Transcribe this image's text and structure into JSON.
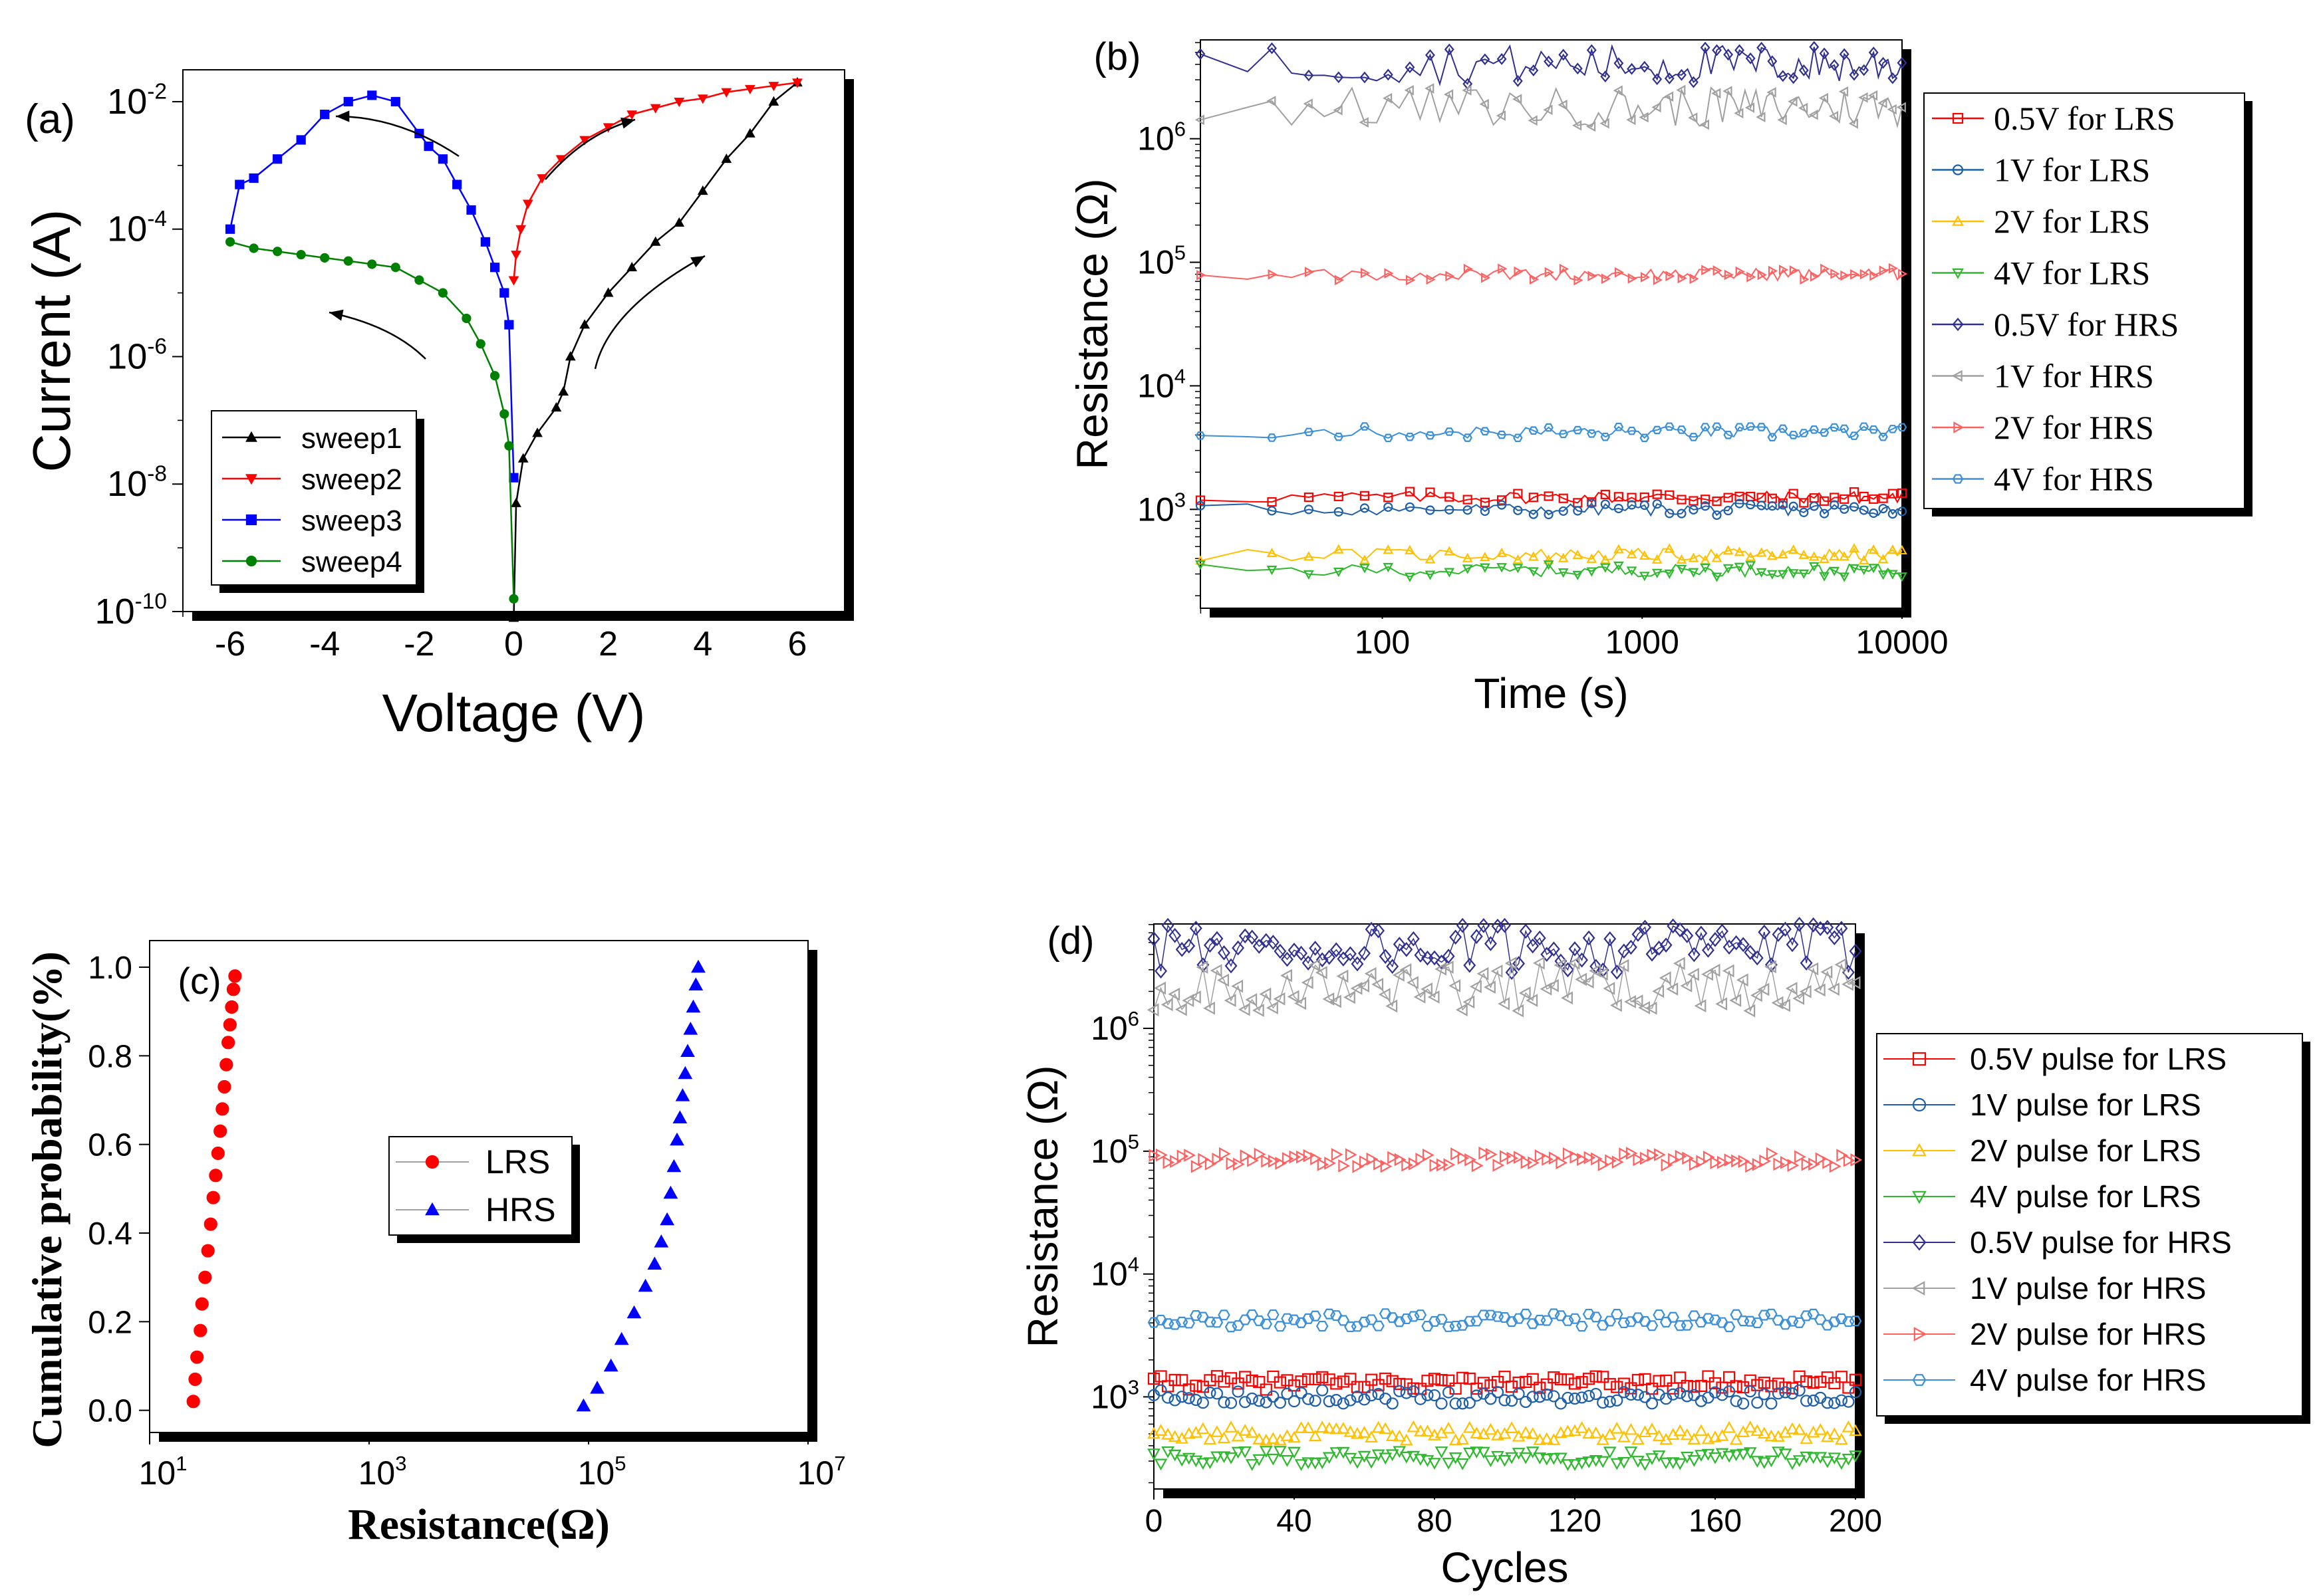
{
  "panels": [
    {
      "id": "a",
      "label": "(a)",
      "chart_data": {
        "type": "line",
        "xlabel": "Voltage (V)",
        "ylabel": "Current (A)",
        "xlim": [
          -7,
          7
        ],
        "ylim_log10": [
          -10,
          -1.5
        ],
        "xticks": [
          -6,
          -4,
          -2,
          0,
          2,
          4,
          6
        ],
        "yticks_exp": [
          -10,
          -8,
          -6,
          -4,
          -2
        ],
        "legend_position": "bottom-left",
        "series": [
          {
            "name": "sweep1",
            "color": "#000000",
            "marker": "triangle",
            "x": [
              0,
              0.05,
              0.2,
              0.5,
              0.9,
              1.05,
              1.2,
              1.5,
              2.0,
              2.5,
              3.0,
              3.5,
              4.0,
              4.5,
              5.0,
              5.5,
              6.0
            ],
            "log10y": [
              -10.1,
              -8.3,
              -7.6,
              -7.2,
              -6.8,
              -6.55,
              -6.0,
              -5.5,
              -5.0,
              -4.6,
              -4.2,
              -3.9,
              -3.4,
              -2.9,
              -2.5,
              -2.0,
              -1.7
            ]
          },
          {
            "name": "sweep2",
            "color": "#ff0000",
            "marker": "inverted-triangle",
            "x": [
              0,
              0.05,
              0.15,
              0.3,
              0.6,
              1.0,
              1.5,
              2.0,
              2.5,
              3.0,
              3.5,
              4.0,
              4.5,
              5.0,
              5.5,
              6.0
            ],
            "log10y": [
              -4.8,
              -4.4,
              -4.0,
              -3.6,
              -3.2,
              -2.9,
              -2.6,
              -2.4,
              -2.2,
              -2.1,
              -2.0,
              -1.95,
              -1.85,
              -1.8,
              -1.75,
              -1.7
            ]
          },
          {
            "name": "sweep3",
            "color": "#0000ff",
            "marker": "square",
            "x": [
              -6.0,
              -5.8,
              -5.5,
              -5.0,
              -4.5,
              -4.0,
              -3.5,
              -3.0,
              -2.5,
              -2.0,
              -1.8,
              -1.5,
              -1.2,
              -0.9,
              -0.6,
              -0.4,
              -0.2,
              -0.1,
              0
            ],
            "log10y": [
              -4.0,
              -3.3,
              -3.2,
              -2.9,
              -2.6,
              -2.2,
              -2.0,
              -1.9,
              -2.0,
              -2.5,
              -2.7,
              -2.9,
              -3.3,
              -3.7,
              -4.2,
              -4.6,
              -5.0,
              -5.5,
              -7.9
            ]
          },
          {
            "name": "sweep4",
            "color": "#008000",
            "marker": "circle",
            "x": [
              -6.0,
              -5.5,
              -5.0,
              -4.5,
              -4.0,
              -3.5,
              -3.0,
              -2.5,
              -2.0,
              -1.5,
              -1.0,
              -0.7,
              -0.4,
              -0.2,
              -0.1,
              0
            ],
            "log10y": [
              -4.2,
              -4.3,
              -4.35,
              -4.4,
              -4.45,
              -4.5,
              -4.55,
              -4.6,
              -4.8,
              -5.0,
              -5.4,
              -5.8,
              -6.3,
              -6.9,
              -7.4,
              -9.8
            ]
          }
        ]
      }
    },
    {
      "id": "b",
      "label": "(b)",
      "chart_data": {
        "type": "line",
        "xlabel": "Time (s)",
        "ylabel": "Resistance (Ω)",
        "xscale": "log",
        "xlim_log10": [
          1.3,
          4.0
        ],
        "ylim_log10": [
          2.2,
          6.8
        ],
        "xtick_labels": [
          "100",
          "1000",
          "10000"
        ],
        "xticks": [
          100,
          1000,
          10000
        ],
        "yticks_exp": [
          3,
          4,
          5,
          6
        ],
        "legend_position": "right",
        "series": [
          {
            "name": "0.5V for LRS",
            "color": "#ff0000",
            "marker": "square",
            "level": 1250
          },
          {
            "name": "1V  for LRS",
            "color": "#1f5fa8",
            "marker": "circle",
            "level": 1000
          },
          {
            "name": "2V for LRS",
            "color": "#ffc000",
            "marker": "triangle",
            "level": 430
          },
          {
            "name": "4V for LRS",
            "color": "#2eb82e",
            "marker": "inverted-triangle",
            "level": 320
          },
          {
            "name": "0.5V for HRS",
            "color": "#303090",
            "marker": "diamond",
            "level": 4000000
          },
          {
            "name": "1V for HRS",
            "color": "#a0a0a0",
            "marker": "left-triangle",
            "level": 1800000
          },
          {
            "name": "2V for HRS",
            "color": "#ff6060",
            "marker": "right-triangle",
            "level": 80000
          },
          {
            "name": "4V for HRS",
            "color": "#3a8fd8",
            "marker": "hexagon",
            "level": 4200
          }
        ]
      }
    },
    {
      "id": "c",
      "label": "(c)",
      "chart_data": {
        "type": "scatter",
        "xlabel": "Resistance(Ω)",
        "ylabel": "Cumulative probability(%)",
        "xscale": "log",
        "xlim_log10": [
          1,
          7
        ],
        "ylim": [
          -0.05,
          1.06
        ],
        "xticks_exp": [
          1,
          3,
          5,
          7
        ],
        "yticks": [
          0.0,
          0.2,
          0.4,
          0.6,
          0.8,
          1.0
        ],
        "legend_position": "center",
        "series": [
          {
            "name": "LRS",
            "color": "#ff0000",
            "marker": "circle",
            "x": [
              25,
              26,
              27,
              29,
              30,
              32,
              34,
              36,
              38,
              40,
              42,
              44,
              46,
              48,
              50,
              52,
              54,
              56,
              58,
              60
            ],
            "y": [
              0.02,
              0.07,
              0.12,
              0.18,
              0.24,
              0.3,
              0.36,
              0.42,
              0.48,
              0.53,
              0.58,
              0.63,
              0.68,
              0.73,
              0.78,
              0.83,
              0.87,
              0.91,
              0.95,
              0.98
            ]
          },
          {
            "name": "HRS",
            "color": "#0000ff",
            "marker": "triangle",
            "x": [
              90000,
              120000,
              160000,
              200000,
              260000,
              330000,
              400000,
              460000,
              520000,
              560000,
              600000,
              640000,
              680000,
              720000,
              760000,
              800000,
              850000,
              900000,
              950000,
              1000000
            ],
            "y": [
              0.01,
              0.05,
              0.1,
              0.16,
              0.22,
              0.28,
              0.33,
              0.38,
              0.43,
              0.49,
              0.55,
              0.61,
              0.66,
              0.71,
              0.76,
              0.81,
              0.86,
              0.91,
              0.96,
              1.0
            ]
          }
        ]
      }
    },
    {
      "id": "d",
      "label": "(d)",
      "chart_data": {
        "type": "scatter",
        "xlabel": "Cycles",
        "ylabel": "Resistance (Ω)",
        "xlim": [
          0,
          200
        ],
        "ylim_log10": [
          2.25,
          6.85
        ],
        "xticks": [
          0,
          40,
          80,
          120,
          160,
          200
        ],
        "yticks_exp": [
          3,
          4,
          5,
          6
        ],
        "legend_position": "right",
        "series": [
          {
            "name": "0.5V pulse for LRS",
            "color": "#ff0000",
            "marker": "square",
            "level": 1300
          },
          {
            "name": "1V pulse for LRS",
            "color": "#1f5fa8",
            "marker": "circle",
            "level": 1000
          },
          {
            "name": "2V pulse for LRS",
            "color": "#ffc000",
            "marker": "triangle",
            "level": 500
          },
          {
            "name": "4V pulse for LRS",
            "color": "#2eb82e",
            "marker": "inverted-triangle",
            "level": 320
          },
          {
            "name": "0.5V pulse for HRS",
            "color": "#303090",
            "marker": "diamond",
            "level": 4500000
          },
          {
            "name": "1V pulse for HRS",
            "color": "#a0a0a0",
            "marker": "left-triangle",
            "level": 2200000
          },
          {
            "name": "2V pulse for HRS",
            "color": "#ff6060",
            "marker": "right-triangle",
            "level": 85000
          },
          {
            "name": "4V pulse for HRS",
            "color": "#3a8fd8",
            "marker": "hexagon",
            "level": 4200
          }
        ]
      }
    }
  ]
}
